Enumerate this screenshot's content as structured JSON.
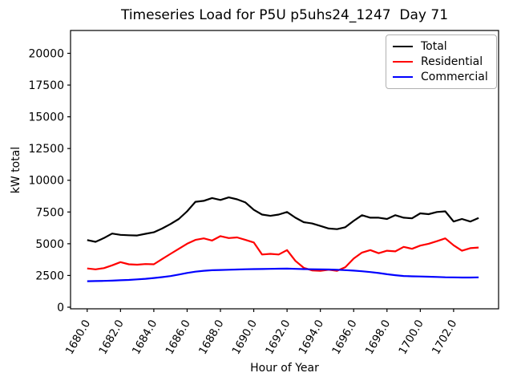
{
  "chart_data": {
    "type": "line",
    "title": "Timeseries Load for P5U p5uhs24_1247  Day 71",
    "xlabel": "Hour of Year",
    "ylabel": "kW total",
    "grid": false,
    "xlim": [
      1679.0,
      1704.7
    ],
    "ylim": [
      0,
      21800
    ],
    "xticks": [
      1680,
      1682,
      1684,
      1686,
      1688,
      1690,
      1692,
      1694,
      1696,
      1698,
      1700,
      1702
    ],
    "xtick_labels": [
      "1680.0",
      "1682.0",
      "1684.0",
      "1686.0",
      "1688.0",
      "1690.0",
      "1692.0",
      "1694.0",
      "1696.0",
      "1698.0",
      "1700.0",
      "1702.0"
    ],
    "xtick_rotation": 60,
    "yticks": [
      0,
      2500,
      5000,
      7500,
      10000,
      12500,
      15000,
      17500,
      20000
    ],
    "ytick_labels": [
      "0",
      "2500",
      "5000",
      "7500",
      "10000",
      "12500",
      "15000",
      "17500",
      "20000"
    ],
    "legend": {
      "position": "upper right",
      "entries": [
        "Total",
        "Residential",
        "Commercial"
      ]
    },
    "x": [
      1680.0,
      1680.5,
      1681.0,
      1681.5,
      1682.0,
      1682.5,
      1683.0,
      1683.5,
      1684.0,
      1684.5,
      1685.0,
      1685.5,
      1686.0,
      1686.5,
      1687.0,
      1687.5,
      1688.0,
      1688.5,
      1689.0,
      1689.5,
      1690.0,
      1690.5,
      1691.0,
      1691.5,
      1692.0,
      1692.5,
      1693.0,
      1693.5,
      1694.0,
      1694.5,
      1695.0,
      1695.5,
      1696.0,
      1696.5,
      1697.0,
      1697.5,
      1698.0,
      1698.5,
      1699.0,
      1699.5,
      1700.0,
      1700.5,
      1701.0,
      1701.5,
      1702.0,
      1702.5,
      1703.0,
      1703.5
    ],
    "series": [
      {
        "name": "Total",
        "color": "#000000",
        "y": [
          5290,
          5150,
          5450,
          5800,
          5700,
          5670,
          5650,
          5780,
          5900,
          6200,
          6550,
          6950,
          7550,
          8300,
          8380,
          8600,
          8450,
          8650,
          8500,
          8250,
          7670,
          7300,
          7200,
          7300,
          7500,
          7050,
          6700,
          6600,
          6400,
          6200,
          6150,
          6300,
          6800,
          7250,
          7050,
          7050,
          6950,
          7250,
          7050,
          7000,
          7390,
          7330,
          7500,
          7550,
          6750,
          6950,
          6750,
          7030
        ]
      },
      {
        "name": "Residential",
        "color": "#ff0000",
        "y": [
          3050,
          2980,
          3080,
          3300,
          3550,
          3380,
          3350,
          3400,
          3380,
          3800,
          4200,
          4600,
          5000,
          5300,
          5420,
          5250,
          5600,
          5450,
          5500,
          5300,
          5100,
          4150,
          4200,
          4150,
          4500,
          3650,
          3100,
          2900,
          2870,
          2950,
          2870,
          3150,
          3830,
          4300,
          4500,
          4250,
          4450,
          4400,
          4750,
          4600,
          4850,
          5000,
          5200,
          5420,
          4880,
          4450,
          4650,
          4700
        ]
      },
      {
        "name": "Commercial",
        "color": "#0000ff",
        "y": [
          2050,
          2060,
          2070,
          2090,
          2120,
          2150,
          2190,
          2240,
          2300,
          2370,
          2450,
          2570,
          2700,
          2800,
          2870,
          2910,
          2930,
          2950,
          2970,
          2990,
          3000,
          3010,
          3020,
          3030,
          3040,
          3020,
          3000,
          2990,
          2980,
          2970,
          2950,
          2920,
          2880,
          2830,
          2770,
          2690,
          2600,
          2520,
          2460,
          2430,
          2420,
          2400,
          2380,
          2360,
          2350,
          2340,
          2340,
          2350
        ]
      }
    ]
  }
}
